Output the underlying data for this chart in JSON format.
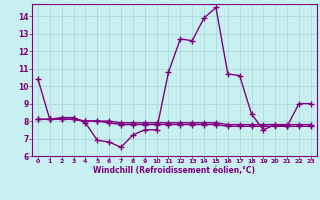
{
  "x": [
    0,
    1,
    2,
    3,
    4,
    5,
    6,
    7,
    8,
    9,
    10,
    11,
    12,
    13,
    14,
    15,
    16,
    17,
    18,
    19,
    20,
    21,
    22,
    23
  ],
  "y_main": [
    10.4,
    8.1,
    8.2,
    8.2,
    7.9,
    6.9,
    6.8,
    6.5,
    7.2,
    7.5,
    7.5,
    10.8,
    12.7,
    12.6,
    13.9,
    14.5,
    10.7,
    10.6,
    8.4,
    7.5,
    7.8,
    7.7,
    9.0,
    9.0
  ],
  "y_ref1": [
    8.1,
    8.1,
    8.1,
    8.1,
    8.0,
    8.0,
    8.0,
    7.9,
    7.9,
    7.9,
    7.9,
    7.9,
    7.9,
    7.9,
    7.9,
    7.9,
    7.8,
    7.8,
    7.8,
    7.8,
    7.8,
    7.8,
    7.8,
    7.8
  ],
  "y_ref2": [
    8.1,
    8.1,
    8.1,
    8.1,
    8.0,
    8.0,
    7.9,
    7.8,
    7.8,
    7.8,
    7.8,
    7.8,
    7.8,
    7.8,
    7.8,
    7.8,
    7.7,
    7.7,
    7.7,
    7.7,
    7.7,
    7.7,
    7.7,
    7.7
  ],
  "line_color": "#800080",
  "bg_color": "#c8f0f0",
  "grid_color": "#b0dede",
  "xlabel": "Windchill (Refroidissement éolien,°C)",
  "ylim": [
    6,
    14.7
  ],
  "xlim": [
    -0.5,
    23.5
  ],
  "yticks": [
    6,
    7,
    8,
    9,
    10,
    11,
    12,
    13,
    14
  ],
  "xticks": [
    0,
    1,
    2,
    3,
    4,
    5,
    6,
    7,
    8,
    9,
    10,
    11,
    12,
    13,
    14,
    15,
    16,
    17,
    18,
    19,
    20,
    21,
    22,
    23
  ],
  "marker": "+",
  "marker_size": 4,
  "linewidth": 1.0
}
